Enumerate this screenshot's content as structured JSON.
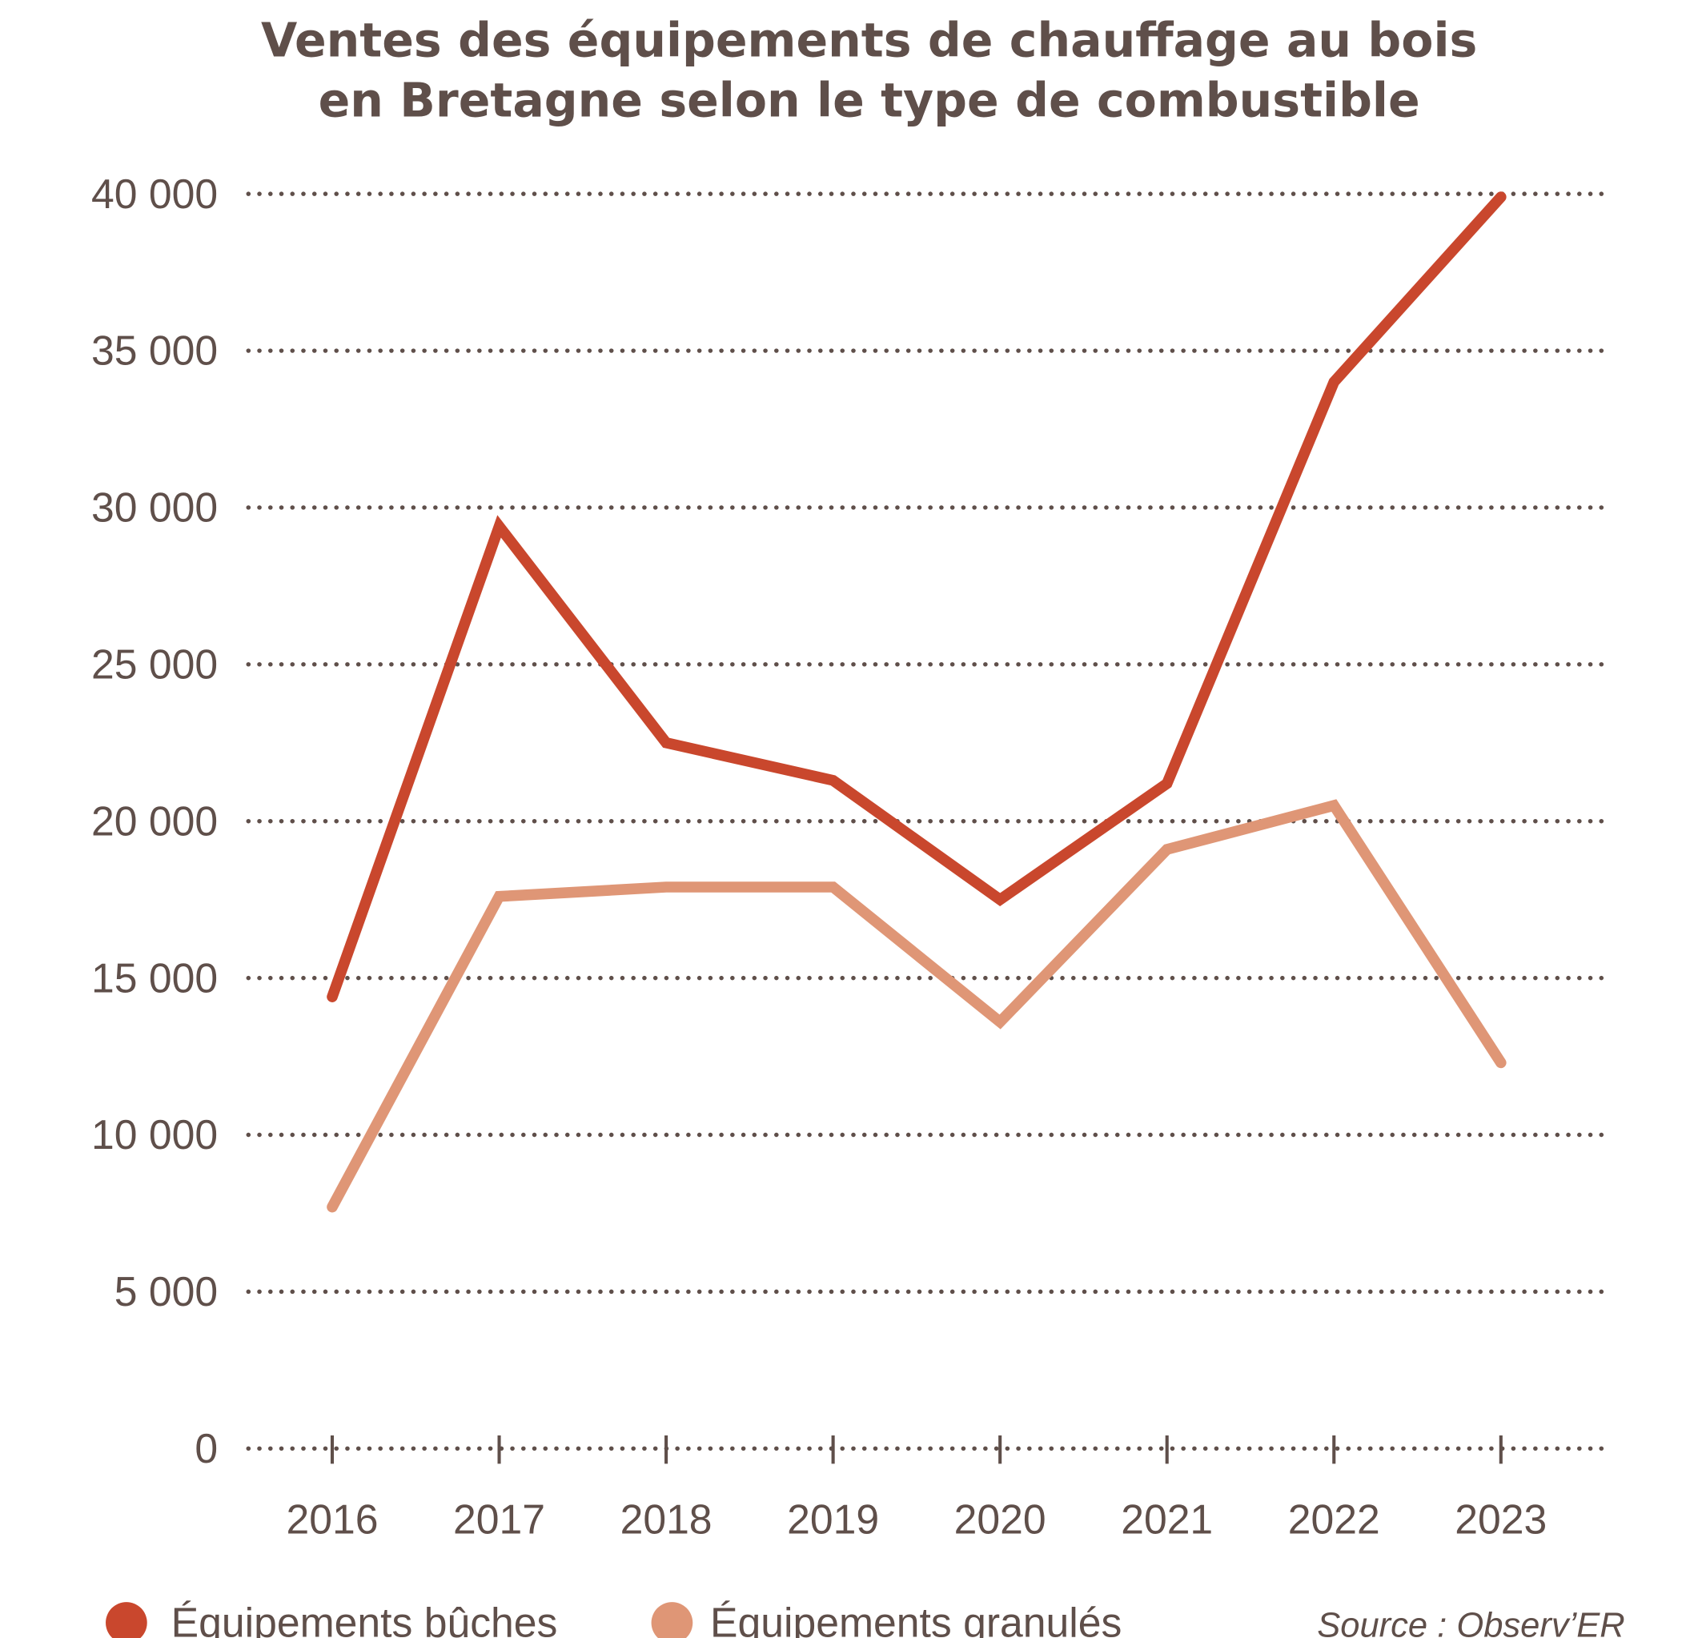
{
  "chart_data": {
    "type": "line",
    "title": [
      "Ventes des équipements de chauffage au bois",
      "en Bretagne selon le type de combustible"
    ],
    "xlabel": "",
    "ylabel": "",
    "categories": [
      "2016",
      "2017",
      "2018",
      "2019",
      "2020",
      "2021",
      "2022",
      "2023"
    ],
    "ylim": [
      0,
      40000
    ],
    "yticks": [
      0,
      5000,
      10000,
      15000,
      20000,
      25000,
      30000,
      35000,
      40000
    ],
    "ytick_labels": [
      "0",
      "5 000",
      "10 000",
      "15 000",
      "20 000",
      "25 000",
      "30 000",
      "35 000",
      "40 000"
    ],
    "grid": "horizontal dotted",
    "legend": "bottom",
    "series": [
      {
        "name": "Équipements bûches",
        "color": "#c9472d",
        "values": [
          14400,
          29400,
          22500,
          21300,
          17500,
          21200,
          34000,
          39900
        ]
      },
      {
        "name": "Équipements granulés",
        "color": "#df9676",
        "values": [
          7700,
          17600,
          17900,
          17900,
          13600,
          19100,
          20500,
          12300
        ]
      }
    ],
    "source": "Source : Observ’ER"
  }
}
